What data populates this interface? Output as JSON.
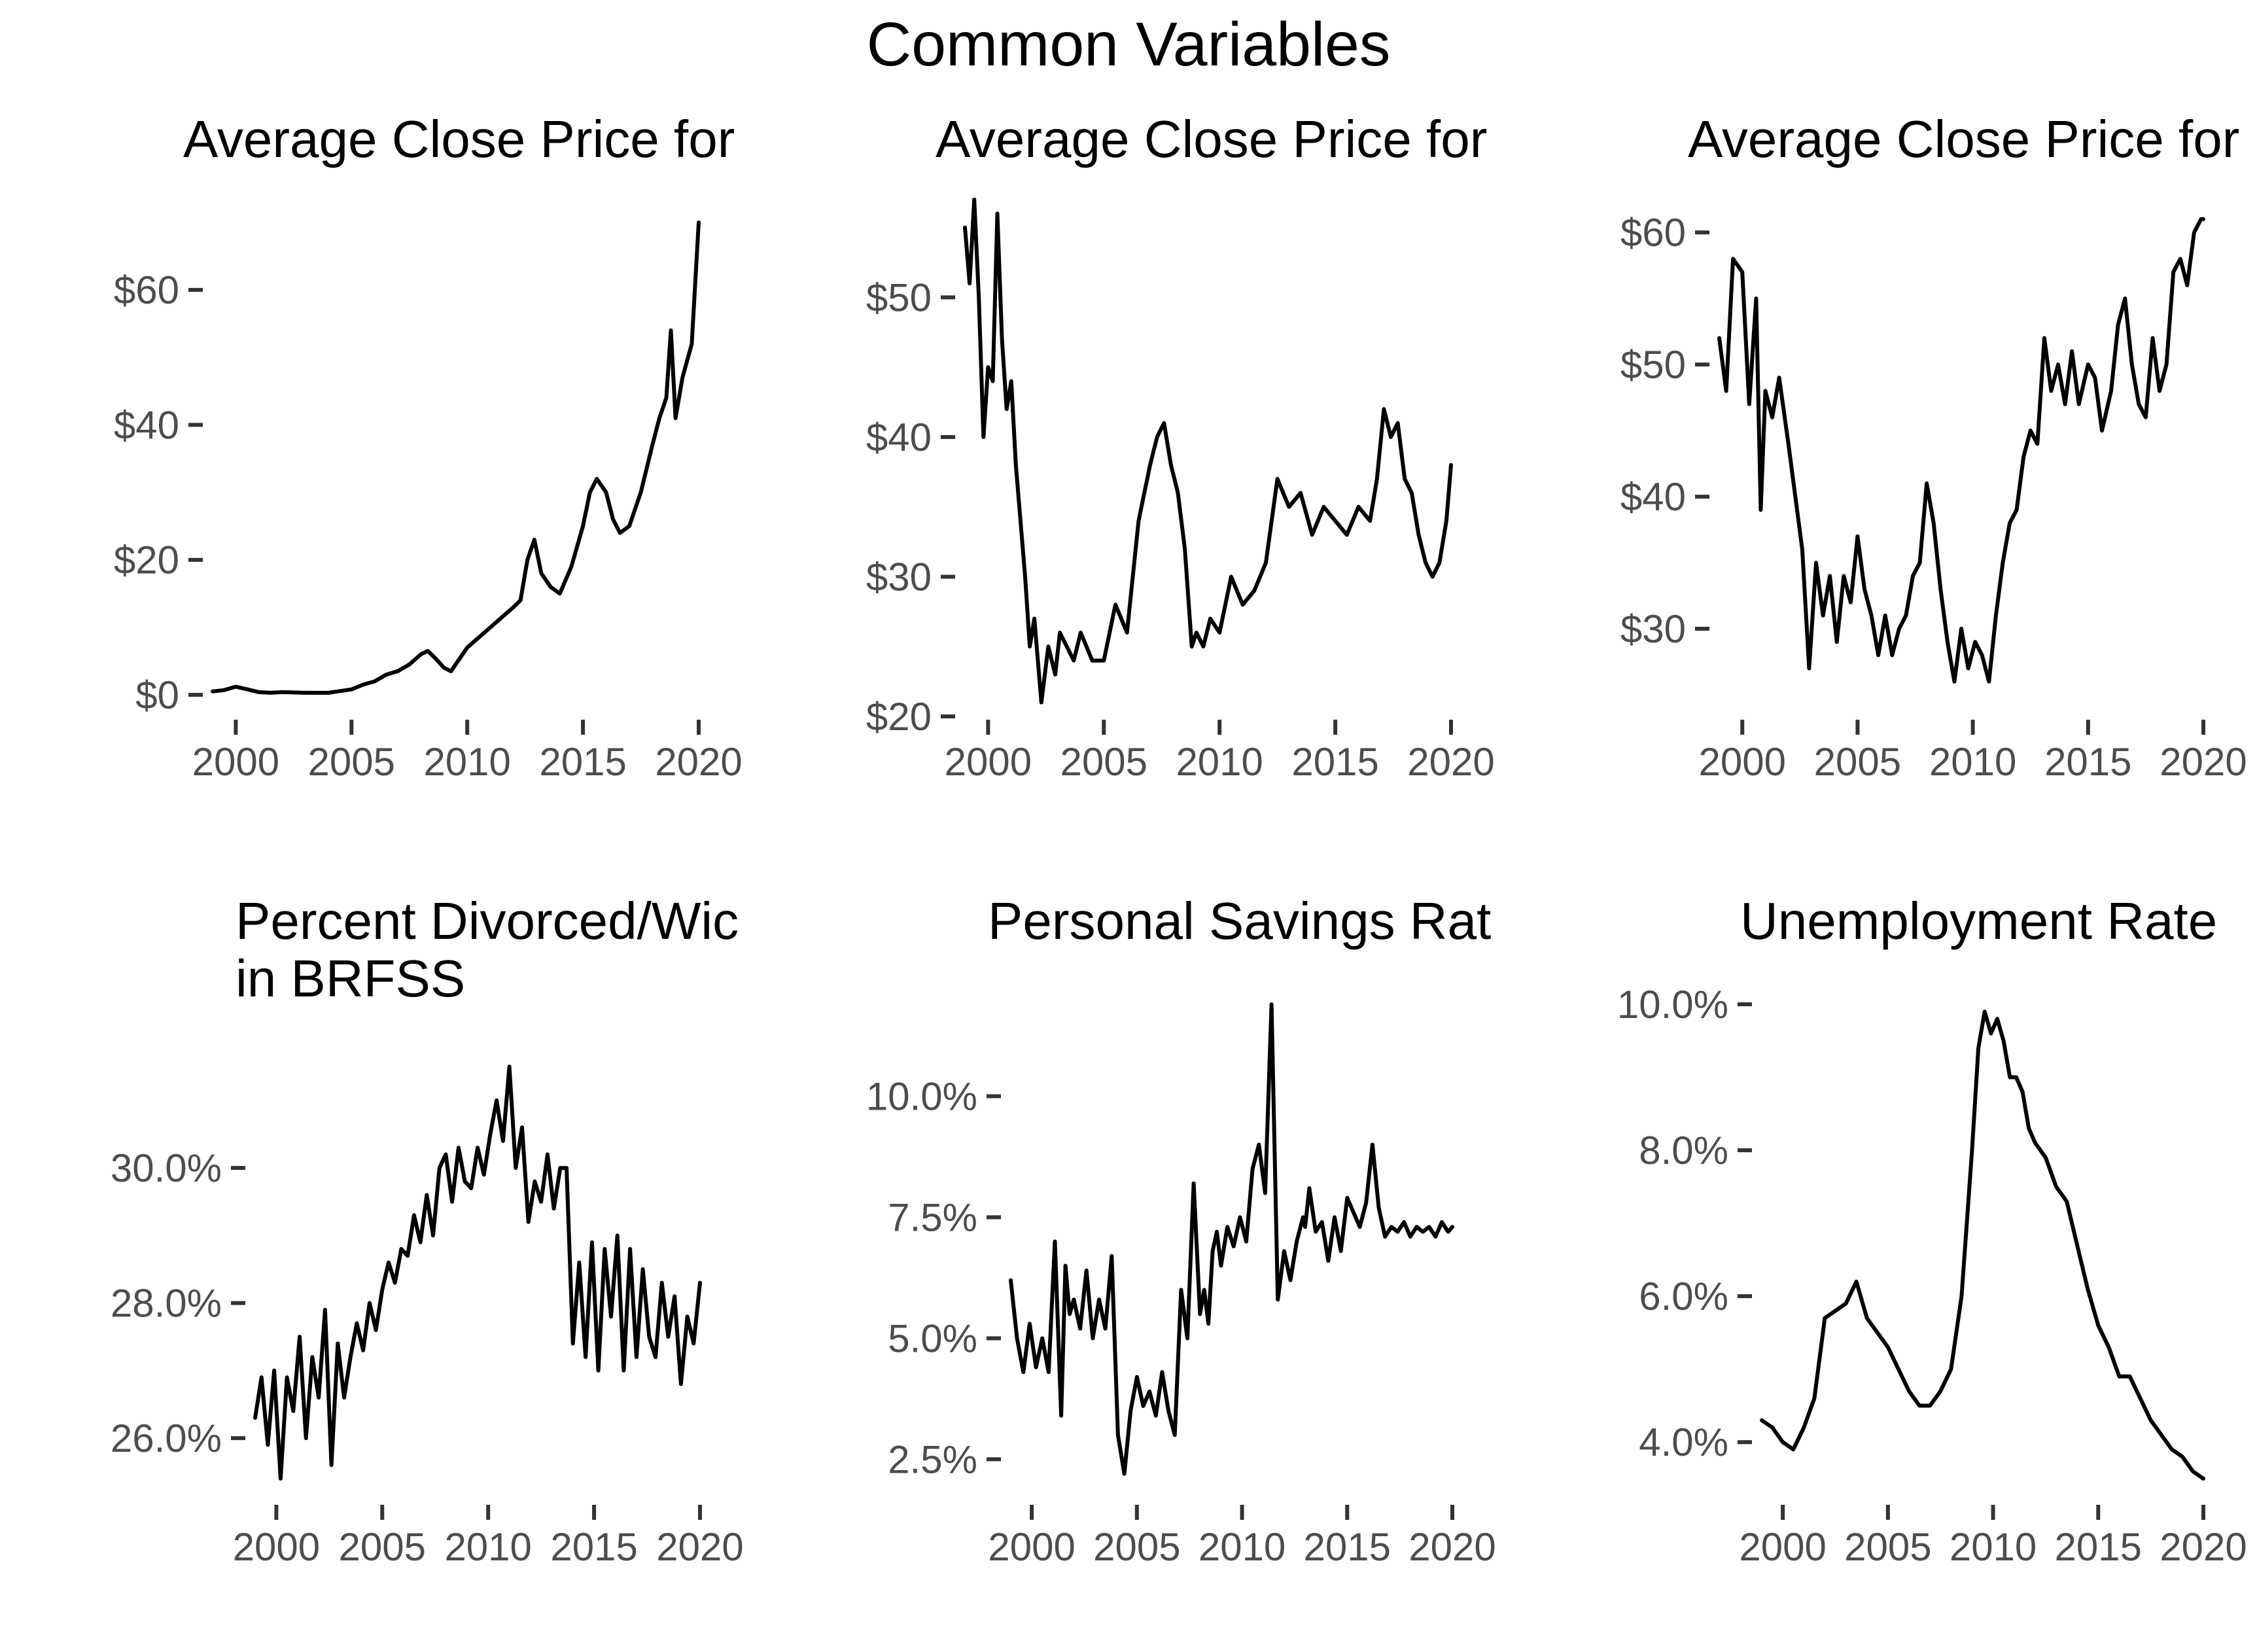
{
  "figure_title": "Common Variables",
  "chart_data": [
    {
      "type": "line",
      "title": "Average Close Price for",
      "xlabel": "",
      "ylabel": "",
      "xlim": [
        1999,
        2020
      ],
      "x_ticks": [
        "2000",
        "2005",
        "2010",
        "2015",
        "2020"
      ],
      "y_ticks": [
        "$0",
        "$20",
        "$40",
        "$60"
      ],
      "y_tick_values": [
        0,
        20,
        40,
        60
      ],
      "ylim": [
        0,
        70
      ],
      "grid": false,
      "series": [
        {
          "x": [
            1999.0,
            1999.5,
            2000.0,
            2000.5,
            2001.0,
            2001.5,
            2002.0,
            2003.0,
            2004.0,
            2005.0,
            2005.5,
            2006.0,
            2006.5,
            2007.0,
            2007.5,
            2008.0,
            2008.3,
            2008.6,
            2009.0,
            2009.3,
            2009.6,
            2010.0,
            2010.5,
            2011.0,
            2011.5,
            2012.0,
            2012.3,
            2012.6,
            2012.9,
            2013.2,
            2013.6,
            2014.0,
            2014.5,
            2015.0,
            2015.3,
            2015.6,
            2016.0,
            2016.3,
            2016.6,
            2017.0,
            2017.5,
            2018.0,
            2018.3,
            2018.6,
            2018.8,
            2019.0,
            2019.3,
            2019.7,
            2020.0
          ],
          "y": [
            0.5,
            0.7,
            1.2,
            0.8,
            0.4,
            0.3,
            0.4,
            0.3,
            0.3,
            0.8,
            1.5,
            2.0,
            3.0,
            3.5,
            4.5,
            6.0,
            6.5,
            5.5,
            4.0,
            3.5,
            5.0,
            7.0,
            8.5,
            10.0,
            11.5,
            13.0,
            14.0,
            20.0,
            23.0,
            18.0,
            16.0,
            15.0,
            19.0,
            25.0,
            30.0,
            32.0,
            30.0,
            26.0,
            24.0,
            25.0,
            30.0,
            37.0,
            41.0,
            44.0,
            54.0,
            41.0,
            47.0,
            52.0,
            70.0
          ]
        }
      ]
    },
    {
      "type": "line",
      "title": "Average Close Price for",
      "xlabel": "",
      "ylabel": "",
      "xlim": [
        1999,
        2020
      ],
      "x_ticks": [
        "2000",
        "2005",
        "2010",
        "2015",
        "2020"
      ],
      "y_ticks": [
        "$20",
        "$30",
        "$40",
        "$50"
      ],
      "y_tick_values": [
        20,
        30,
        40,
        50
      ],
      "ylim": [
        20,
        57
      ],
      "grid": false,
      "series": [
        {
          "x": [
            1999.0,
            1999.2,
            1999.4,
            1999.6,
            1999.8,
            2000.0,
            2000.2,
            2000.4,
            2000.6,
            2000.8,
            2001.0,
            2001.2,
            2001.4,
            2001.6,
            2001.8,
            2002.0,
            2002.3,
            2002.6,
            2002.9,
            2003.1,
            2003.4,
            2003.7,
            2004.0,
            2004.5,
            2005.0,
            2005.5,
            2006.0,
            2006.5,
            2007.0,
            2007.3,
            2007.6,
            2007.9,
            2008.2,
            2008.5,
            2008.8,
            2009.0,
            2009.3,
            2009.6,
            2010.0,
            2010.5,
            2011.0,
            2011.5,
            2012.0,
            2012.5,
            2013.0,
            2013.5,
            2014.0,
            2014.5,
            2015.0,
            2015.5,
            2016.0,
            2016.5,
            2016.8,
            2017.1,
            2017.4,
            2017.7,
            2018.0,
            2018.3,
            2018.6,
            2018.9,
            2019.2,
            2019.5,
            2019.8,
            2020.0
          ],
          "y": [
            55,
            51,
            57,
            50,
            40,
            45,
            44,
            56,
            47,
            42,
            44,
            38,
            34,
            30,
            25,
            27,
            21,
            25,
            23,
            26,
            25,
            24,
            26,
            24,
            24,
            28,
            26,
            34,
            38,
            40,
            41,
            38,
            36,
            32,
            25,
            26,
            25,
            27,
            26,
            30,
            28,
            29,
            31,
            37,
            35,
            36,
            33,
            35,
            34,
            33,
            35,
            34,
            37,
            42,
            40,
            41,
            37,
            36,
            33,
            31,
            30,
            31,
            34,
            38
          ]
        }
      ]
    },
    {
      "type": "line",
      "title": "Average Close Price for",
      "xlabel": "",
      "ylabel": "",
      "xlim": [
        1999,
        2020
      ],
      "x_ticks": [
        "2000",
        "2005",
        "2010",
        "2015",
        "2020"
      ],
      "y_ticks": [
        "$30",
        "$40",
        "$50",
        "$60"
      ],
      "y_tick_values": [
        30,
        40,
        50,
        60
      ],
      "ylim": [
        25,
        61
      ],
      "grid": false,
      "series": [
        {
          "x": [
            1999.0,
            1999.3,
            1999.6,
            2000.0,
            2000.3,
            2000.6,
            2000.8,
            2001.0,
            2001.3,
            2001.6,
            2002.0,
            2002.3,
            2002.6,
            2002.9,
            2003.2,
            2003.5,
            2003.8,
            2004.1,
            2004.4,
            2004.7,
            2005.0,
            2005.3,
            2005.6,
            2005.9,
            2006.2,
            2006.5,
            2006.8,
            2007.1,
            2007.4,
            2007.7,
            2008.0,
            2008.3,
            2008.6,
            2008.9,
            2009.2,
            2009.5,
            2009.8,
            2010.1,
            2010.4,
            2010.7,
            2011.0,
            2011.3,
            2011.6,
            2011.9,
            2012.2,
            2012.5,
            2012.8,
            2013.1,
            2013.4,
            2013.7,
            2014.0,
            2014.3,
            2014.6,
            2015.0,
            2015.3,
            2015.6,
            2016.0,
            2016.3,
            2016.6,
            2016.9,
            2017.2,
            2017.5,
            2017.8,
            2018.1,
            2018.4,
            2018.7,
            2019.0,
            2019.3,
            2019.6,
            2019.9,
            2020.0
          ],
          "y": [
            52,
            48,
            58,
            57,
            47,
            55,
            39,
            48,
            46,
            49,
            44,
            40,
            36,
            27,
            35,
            31,
            34,
            29,
            34,
            32,
            37,
            33,
            31,
            28,
            31,
            28,
            30,
            31,
            34,
            35,
            41,
            38,
            33,
            29,
            26,
            30,
            27,
            29,
            28,
            26,
            31,
            35,
            38,
            39,
            43,
            45,
            44,
            52,
            48,
            50,
            47,
            51,
            47,
            50,
            49,
            45,
            48,
            53,
            55,
            50,
            47,
            46,
            52,
            48,
            50,
            57,
            58,
            56,
            60,
            61,
            61
          ]
        }
      ]
    },
    {
      "type": "line",
      "title": "Percent Divorced/Wic\nin BRFSS",
      "xlabel": "",
      "ylabel": "",
      "xlim": [
        1999,
        2020
      ],
      "x_ticks": [
        "2000",
        "2005",
        "2010",
        "2015",
        "2020"
      ],
      "y_ticks": [
        "26.0%",
        "28.0%",
        "30.0%"
      ],
      "y_tick_values": [
        26,
        28,
        30
      ],
      "ylim": [
        25.4,
        31.6
      ],
      "grid": false,
      "series": [
        {
          "x": [
            1999.0,
            1999.3,
            1999.6,
            1999.9,
            2000.2,
            2000.5,
            2000.8,
            2001.1,
            2001.4,
            2001.7,
            2002.0,
            2002.3,
            2002.6,
            2002.9,
            2003.2,
            2003.5,
            2003.8,
            2004.1,
            2004.4,
            2004.7,
            2005.0,
            2005.3,
            2005.6,
            2005.9,
            2006.2,
            2006.5,
            2006.8,
            2007.1,
            2007.4,
            2007.7,
            2008.0,
            2008.3,
            2008.6,
            2008.9,
            2009.2,
            2009.5,
            2009.8,
            2010.1,
            2010.4,
            2010.7,
            2011.0,
            2011.3,
            2011.6,
            2011.9,
            2012.2,
            2012.5,
            2012.8,
            2013.1,
            2013.4,
            2013.7,
            2014.0,
            2014.3,
            2014.6,
            2014.9,
            2015.2,
            2015.5,
            2015.8,
            2016.1,
            2016.4,
            2016.7,
            2017.0,
            2017.3,
            2017.6,
            2017.9,
            2018.2,
            2018.5,
            2018.8,
            2019.1,
            2019.4,
            2019.7,
            2020.0
          ],
          "y": [
            26.3,
            26.9,
            25.9,
            27.0,
            25.4,
            26.9,
            26.4,
            27.5,
            26.0,
            27.2,
            26.6,
            27.9,
            25.6,
            27.4,
            26.6,
            27.2,
            27.7,
            27.3,
            28.0,
            27.6,
            28.2,
            28.6,
            28.3,
            28.8,
            28.7,
            29.3,
            28.9,
            29.6,
            29.0,
            30.0,
            30.2,
            29.5,
            30.3,
            29.8,
            29.7,
            30.3,
            29.9,
            30.5,
            31.0,
            30.4,
            31.5,
            30.0,
            30.6,
            29.2,
            29.8,
            29.5,
            30.2,
            29.4,
            30.0,
            30.0,
            27.4,
            28.6,
            27.2,
            28.9,
            27.0,
            28.8,
            27.8,
            29.0,
            27.0,
            28.8,
            27.2,
            28.5,
            27.5,
            27.2,
            28.3,
            27.5,
            28.1,
            26.8,
            27.8,
            27.4,
            28.3
          ]
        }
      ]
    },
    {
      "type": "line",
      "title": "Personal Savings Rat",
      "xlabel": "",
      "ylabel": "",
      "xlim": [
        1999,
        2020
      ],
      "x_ticks": [
        "2000",
        "2005",
        "2010",
        "2015",
        "2020"
      ],
      "y_ticks": [
        "2.5%",
        "5.0%",
        "7.5%",
        "10.0%"
      ],
      "y_tick_values": [
        2.5,
        5.0,
        7.5,
        10.0
      ],
      "ylim": [
        2.1,
        11.9
      ],
      "grid": false,
      "series": [
        {
          "x": [
            1999.0,
            1999.3,
            1999.6,
            1999.9,
            2000.2,
            2000.5,
            2000.8,
            2001.1,
            2001.4,
            2001.6,
            2001.8,
            2002.0,
            2002.3,
            2002.6,
            2002.9,
            2003.2,
            2003.5,
            2003.8,
            2004.1,
            2004.4,
            2004.7,
            2005.0,
            2005.3,
            2005.6,
            2005.9,
            2006.2,
            2006.5,
            2006.8,
            2007.1,
            2007.4,
            2007.7,
            2008.0,
            2008.2,
            2008.4,
            2008.6,
            2008.8,
            2009.0,
            2009.3,
            2009.6,
            2009.9,
            2010.2,
            2010.5,
            2010.8,
            2011.1,
            2011.4,
            2011.7,
            2012.0,
            2012.3,
            2012.6,
            2012.9,
            2013.0,
            2013.2,
            2013.5,
            2013.8,
            2014.1,
            2014.4,
            2014.7,
            2015.0,
            2015.3,
            2015.6,
            2015.9,
            2016.2,
            2016.5,
            2016.8,
            2017.1,
            2017.4,
            2017.7,
            2018.0,
            2018.3,
            2018.6,
            2018.9,
            2019.2,
            2019.5,
            2019.8,
            2020.0
          ],
          "y": [
            6.2,
            5.0,
            4.3,
            5.3,
            4.4,
            5.0,
            4.3,
            7.0,
            3.4,
            6.5,
            5.5,
            5.8,
            5.2,
            6.4,
            5.0,
            5.8,
            5.2,
            6.7,
            3.0,
            2.2,
            3.5,
            4.2,
            3.6,
            3.9,
            3.4,
            4.3,
            3.5,
            3.0,
            6.0,
            5.0,
            8.2,
            5.5,
            6.0,
            5.3,
            6.8,
            7.2,
            6.5,
            7.3,
            6.9,
            7.5,
            7.0,
            8.5,
            9.0,
            8.0,
            11.9,
            5.8,
            6.8,
            6.2,
            7.0,
            7.5,
            7.3,
            8.1,
            7.2,
            7.4,
            6.6,
            7.5,
            6.8,
            7.9,
            7.6,
            7.3,
            7.8,
            9.0,
            7.7,
            7.1,
            7.3,
            7.2,
            7.4,
            7.1,
            7.3,
            7.2,
            7.3,
            7.1,
            7.4,
            7.2,
            7.3
          ]
        }
      ]
    },
    {
      "type": "line",
      "title": "Unemployment Rate",
      "xlabel": "",
      "ylabel": "",
      "xlim": [
        1999,
        2020
      ],
      "x_ticks": [
        "2000",
        "2005",
        "2010",
        "2015",
        "2020"
      ],
      "y_ticks": [
        "4.0%",
        "6.0%",
        "8.0%",
        "10.0%"
      ],
      "y_tick_values": [
        4,
        6,
        8,
        10
      ],
      "ylim": [
        3.5,
        10.0
      ],
      "grid": false,
      "series": [
        {
          "x": [
            1999.0,
            1999.5,
            2000.0,
            2000.5,
            2001.0,
            2001.5,
            2002.0,
            2002.5,
            2003.0,
            2003.5,
            2004.0,
            2004.5,
            2005.0,
            2005.5,
            2006.0,
            2006.5,
            2007.0,
            2007.5,
            2008.0,
            2008.5,
            2009.0,
            2009.3,
            2009.6,
            2009.9,
            2010.2,
            2010.5,
            2010.8,
            2011.1,
            2011.4,
            2011.7,
            2012.0,
            2012.5,
            2013.0,
            2013.5,
            2014.0,
            2014.5,
            2015.0,
            2015.5,
            2016.0,
            2016.5,
            2017.0,
            2017.5,
            2018.0,
            2018.5,
            2019.0,
            2019.5,
            2020.0
          ],
          "y": [
            4.3,
            4.2,
            4.0,
            3.9,
            4.2,
            4.6,
            5.7,
            5.8,
            5.9,
            6.2,
            5.7,
            5.5,
            5.3,
            5.0,
            4.7,
            4.5,
            4.5,
            4.7,
            5.0,
            6.0,
            8.0,
            9.4,
            9.9,
            9.6,
            9.8,
            9.5,
            9.0,
            9.0,
            8.8,
            8.3,
            8.1,
            7.9,
            7.5,
            7.3,
            6.7,
            6.1,
            5.6,
            5.3,
            4.9,
            4.9,
            4.6,
            4.3,
            4.1,
            3.9,
            3.8,
            3.6,
            3.5
          ]
        }
      ]
    }
  ]
}
